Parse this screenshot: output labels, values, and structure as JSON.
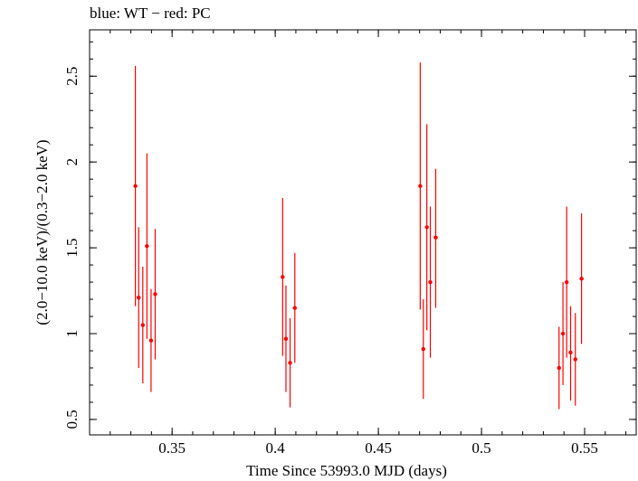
{
  "chart_data": {
    "type": "scatter",
    "title": "blue: WT − red: PC",
    "xlabel": "Time Since 53993.0 MJD (days)",
    "ylabel": "(2.0−10.0 keV)/(0.3−2.0 keV)",
    "xlim": [
      0.31,
      0.575
    ],
    "ylim": [
      0.41,
      2.77
    ],
    "xticks": [
      "0.35",
      "0.4",
      "0.45",
      "0.5",
      "0.55"
    ],
    "yticks": [
      "0.5",
      "1",
      "1.5",
      "2",
      "2.5"
    ],
    "grid": false,
    "series": [
      {
        "name": "PC",
        "color": "#ff0000",
        "points": [
          {
            "x": 0.3322,
            "y": 1.86,
            "xerr": 0.0005,
            "ylo": 1.16,
            "yhi": 2.56
          },
          {
            "x": 0.3338,
            "y": 1.21,
            "xerr": 0.0005,
            "ylo": 0.8,
            "yhi": 1.62
          },
          {
            "x": 0.3358,
            "y": 1.05,
            "xerr": 0.0005,
            "ylo": 0.71,
            "yhi": 1.39
          },
          {
            "x": 0.3378,
            "y": 1.51,
            "xerr": 0.0005,
            "ylo": 0.97,
            "yhi": 2.05
          },
          {
            "x": 0.3398,
            "y": 0.96,
            "xerr": 0.0005,
            "ylo": 0.66,
            "yhi": 1.26
          },
          {
            "x": 0.3418,
            "y": 1.23,
            "xerr": 0.0005,
            "ylo": 0.85,
            "yhi": 1.61
          },
          {
            "x": 0.4036,
            "y": 1.33,
            "xerr": 0.0005,
            "ylo": 0.87,
            "yhi": 1.79
          },
          {
            "x": 0.4052,
            "y": 0.97,
            "xerr": 0.0005,
            "ylo": 0.66,
            "yhi": 1.28
          },
          {
            "x": 0.4072,
            "y": 0.83,
            "xerr": 0.0005,
            "ylo": 0.57,
            "yhi": 1.09
          },
          {
            "x": 0.4095,
            "y": 1.15,
            "xerr": 0.001,
            "ylo": 0.83,
            "yhi": 1.47
          },
          {
            "x": 0.4703,
            "y": 1.86,
            "xerr": 0.0005,
            "ylo": 1.14,
            "yhi": 2.58
          },
          {
            "x": 0.4718,
            "y": 0.91,
            "xerr": 0.0005,
            "ylo": 0.62,
            "yhi": 1.2
          },
          {
            "x": 0.4735,
            "y": 1.62,
            "xerr": 0.0005,
            "ylo": 1.02,
            "yhi": 2.22
          },
          {
            "x": 0.4752,
            "y": 1.3,
            "xerr": 0.0005,
            "ylo": 0.86,
            "yhi": 1.74
          },
          {
            "x": 0.4778,
            "y": 1.56,
            "xerr": 0.001,
            "ylo": 1.15,
            "yhi": 1.96
          },
          {
            "x": 0.5376,
            "y": 0.8,
            "xerr": 0.0005,
            "ylo": 0.56,
            "yhi": 1.04
          },
          {
            "x": 0.5395,
            "y": 1.0,
            "xerr": 0.0005,
            "ylo": 0.7,
            "yhi": 1.3
          },
          {
            "x": 0.5413,
            "y": 1.3,
            "xerr": 0.0005,
            "ylo": 0.86,
            "yhi": 1.74
          },
          {
            "x": 0.5432,
            "y": 0.89,
            "xerr": 0.0005,
            "ylo": 0.61,
            "yhi": 1.16
          },
          {
            "x": 0.5455,
            "y": 0.85,
            "xerr": 0.0008,
            "ylo": 0.58,
            "yhi": 1.12
          },
          {
            "x": 0.5485,
            "y": 1.32,
            "xerr": 0.001,
            "ylo": 0.94,
            "yhi": 1.7
          }
        ]
      }
    ]
  }
}
